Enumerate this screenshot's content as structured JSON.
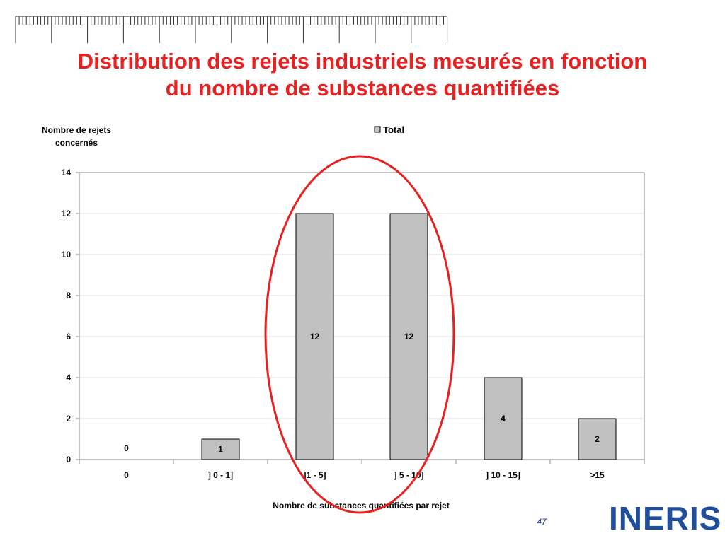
{
  "slide": {
    "title_line1": "Distribution des rejets industriels mesurés en fonction",
    "title_line2": "du nombre de substances quantifiées",
    "page_number": "47",
    "logo_text": "INERIS"
  },
  "colors": {
    "title": "#e8201f",
    "bar_fill": "#c0c0c0",
    "bar_stroke": "#000000",
    "highlight_ellipse": "#e8201f",
    "logo": "#1f4e9c"
  },
  "chart_data": {
    "type": "bar",
    "ylabel_line1": "Nombre de rejets",
    "ylabel_line2": "concernés",
    "xlabel": "Nombre de substances quantifiées par rejet",
    "legend": "Total",
    "legend_position": "top-center",
    "categories": [
      "0",
      "] 0 - 1]",
      "]1 - 5]",
      "] 5 - 10]",
      "] 10 - 15]",
      ">15"
    ],
    "series": [
      {
        "name": "Total",
        "values": [
          0,
          1,
          12,
          12,
          4,
          2
        ]
      }
    ],
    "data_labels": [
      "0",
      "1",
      "12",
      "12",
      "4",
      "2"
    ],
    "ylim": [
      0,
      14
    ],
    "yticks": [
      0,
      2,
      4,
      6,
      8,
      10,
      12,
      14
    ],
    "grid": true,
    "highlighted_categories": [
      "]1 - 5]",
      "] 5 - 10]"
    ]
  }
}
